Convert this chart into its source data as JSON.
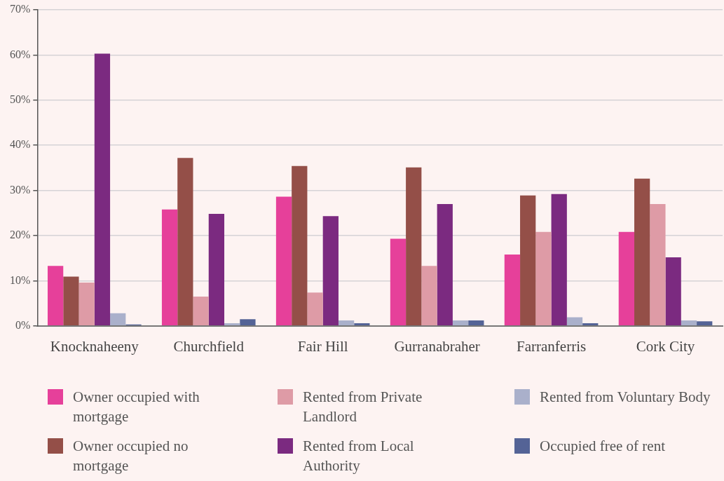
{
  "chart_data": {
    "type": "bar",
    "categories": [
      "Knocknaheeny",
      "Churchfield",
      "Fair Hill",
      "Gurranabraher",
      "Farranferris",
      "Cork City"
    ],
    "series": [
      {
        "name": "Owner occupied with mortgage",
        "color": "#e6409a",
        "values": [
          13.3,
          25.8,
          28.6,
          19.3,
          15.8,
          20.8
        ]
      },
      {
        "name": "Owner occupied no mortgage",
        "color": "#944f48",
        "values": [
          10.9,
          37.2,
          35.4,
          35.1,
          28.9,
          32.6
        ]
      },
      {
        "name": "Rented from Private Landlord",
        "color": "#de9ba6",
        "values": [
          9.6,
          6.5,
          7.4,
          13.3,
          20.8,
          27.0
        ]
      },
      {
        "name": "Rented from Local Authority",
        "color": "#7b2a80",
        "values": [
          60.3,
          24.8,
          24.3,
          27.0,
          29.2,
          15.2
        ]
      },
      {
        "name": "Rented from Voluntary Body",
        "color": "#aab0cb",
        "values": [
          2.8,
          0.6,
          1.2,
          1.2,
          1.9,
          1.2
        ]
      },
      {
        "name": "Occupied free of rent",
        "color": "#546396",
        "values": [
          0.3,
          1.5,
          0.6,
          1.2,
          0.6,
          1.0
        ]
      }
    ],
    "ylim": [
      0,
      70
    ],
    "yticks": [
      {
        "value": 0,
        "label": "0%"
      },
      {
        "value": 10,
        "label": "10%"
      },
      {
        "value": 20,
        "label": "20%"
      },
      {
        "value": 30,
        "label": "30%"
      },
      {
        "value": 40,
        "label": "40%"
      },
      {
        "value": 50,
        "label": "50%"
      },
      {
        "value": 60,
        "label": "60%"
      },
      {
        "value": 70,
        "label": "70%"
      }
    ],
    "grid": "y",
    "legend": "bottom"
  }
}
